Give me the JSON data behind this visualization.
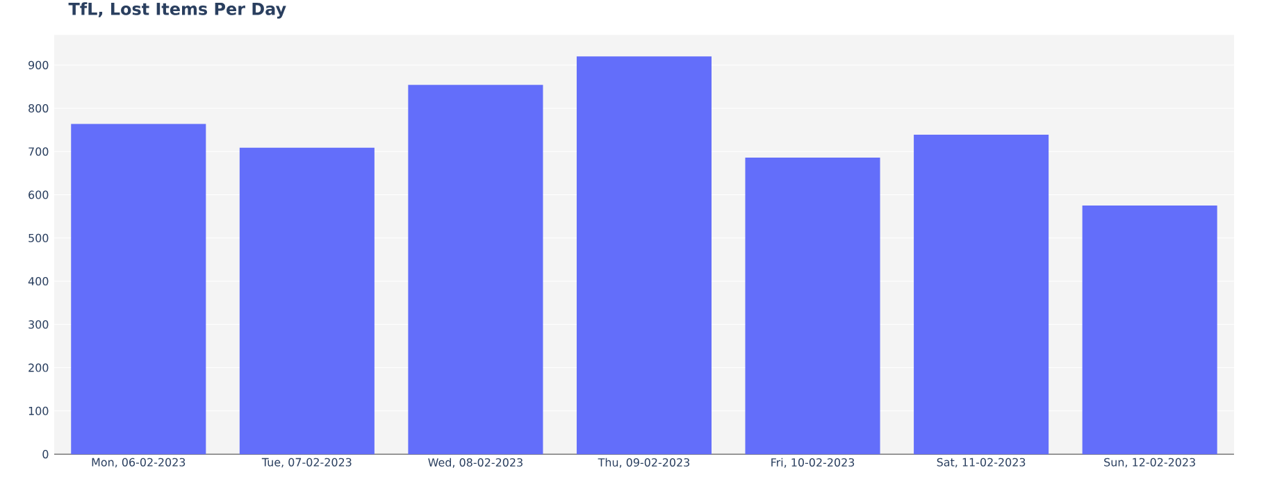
{
  "chart_data": {
    "type": "bar",
    "title": "TfL, Lost Items Per Day",
    "categories": [
      "Mon, 06-02-2023",
      "Tue, 07-02-2023",
      "Wed, 08-02-2023",
      "Thu, 09-02-2023",
      "Fri, 10-02-2023",
      "Sat, 11-02-2023",
      "Sun, 12-02-2023"
    ],
    "values": [
      764,
      709,
      854,
      920,
      686,
      739,
      575
    ],
    "color": "#636efa",
    "ylim": [
      0,
      970
    ],
    "yticks": [
      0,
      100,
      200,
      300,
      400,
      500,
      600,
      700,
      800,
      900
    ],
    "grid": "y"
  }
}
